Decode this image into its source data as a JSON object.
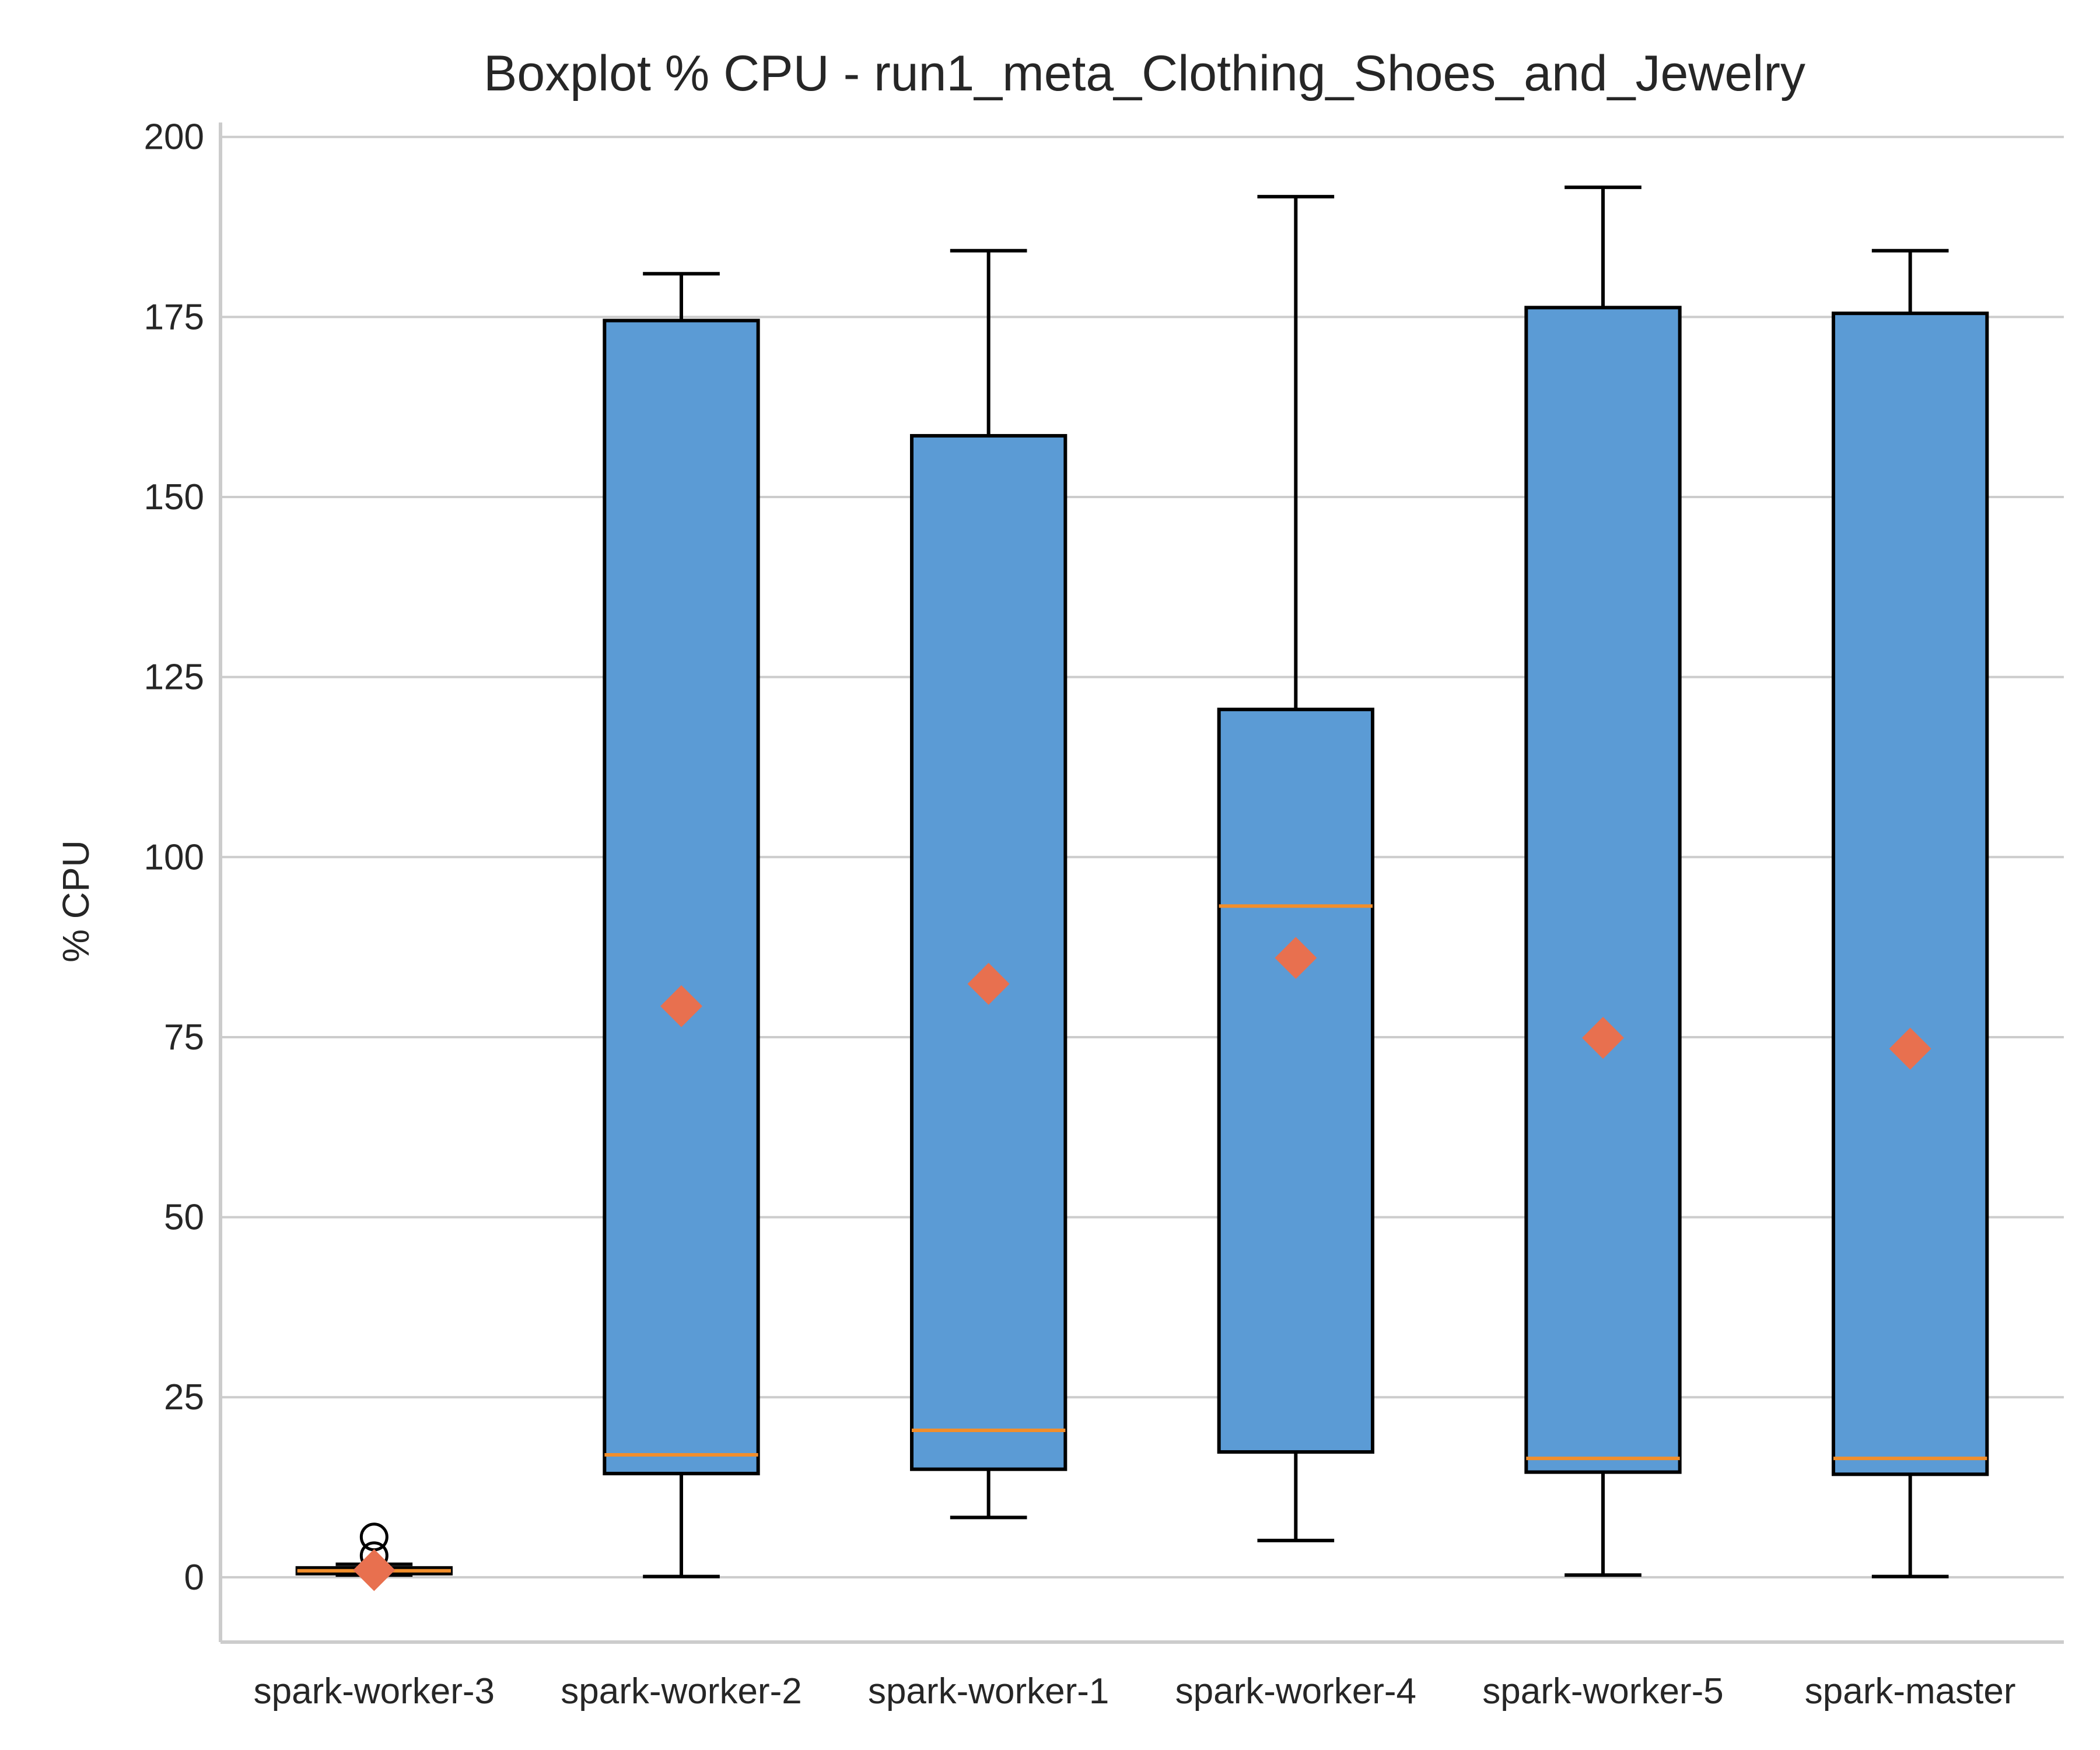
{
  "chart_data": {
    "type": "box",
    "title": "Boxplot % CPU - run1_meta_Clothing_Shoes_and_Jewelry",
    "xlabel": "",
    "ylabel": "% CPU",
    "ylim": [
      -9,
      202
    ],
    "yticks": [
      0,
      25,
      50,
      75,
      100,
      125,
      150,
      175,
      200
    ],
    "grid": "horizontal",
    "categories": [
      "spark-worker-3",
      "spark-worker-2",
      "spark-worker-1",
      "spark-worker-4",
      "spark-worker-5",
      "spark-master"
    ],
    "boxes": [
      {
        "whisker_low": 0.3,
        "q1": 0.5,
        "median": 0.9,
        "q3": 1.3,
        "whisker_high": 1.8,
        "mean": 1.0,
        "outliers": [
          3.0,
          5.6
        ]
      },
      {
        "whisker_low": 0.1,
        "q1": 14.4,
        "median": 17.0,
        "q3": 174.5,
        "whisker_high": 181.0,
        "mean": 79.3,
        "outliers": []
      },
      {
        "whisker_low": 8.3,
        "q1": 15.0,
        "median": 20.4,
        "q3": 158.5,
        "whisker_high": 184.2,
        "mean": 82.4,
        "outliers": []
      },
      {
        "whisker_low": 5.1,
        "q1": 17.4,
        "median": 93.2,
        "q3": 120.5,
        "whisker_high": 191.7,
        "mean": 86.0,
        "outliers": []
      },
      {
        "whisker_low": 0.3,
        "q1": 14.6,
        "median": 16.5,
        "q3": 176.3,
        "whisker_high": 193.0,
        "mean": 74.9,
        "outliers": []
      },
      {
        "whisker_low": 0.1,
        "q1": 14.3,
        "median": 16.5,
        "q3": 175.5,
        "whisker_high": 184.2,
        "mean": 73.4,
        "outliers": []
      }
    ],
    "colors": {
      "box_fill": "#5b9bd5",
      "box_edge": "#000000",
      "median": "#f28e2b",
      "mean_marker": "#e8704f",
      "grid": "#cccccc",
      "spine": "#cccccc"
    }
  }
}
